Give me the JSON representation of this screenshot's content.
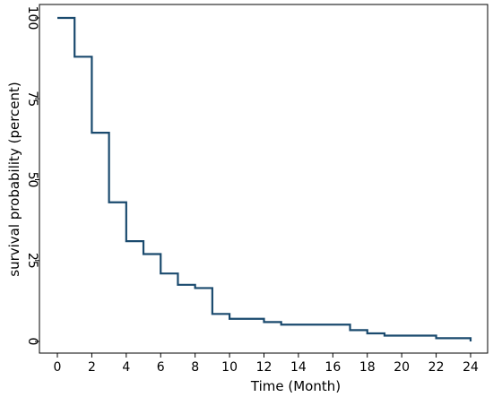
{
  "chart_data": {
    "type": "line",
    "line_style": "step",
    "title": "",
    "xlabel": "Time (Month)",
    "ylabel": "survival probability (percent)",
    "xlim": [
      0,
      24
    ],
    "ylim": [
      0,
      100
    ],
    "x_ticks": [
      0,
      2,
      4,
      6,
      8,
      10,
      12,
      14,
      16,
      18,
      20,
      22,
      24
    ],
    "y_ticks": [
      0,
      25,
      50,
      75,
      100
    ],
    "grid": false,
    "legend": "none",
    "series": [
      {
        "color": "#1a4a6e",
        "x": [
          0,
          1,
          2,
          3,
          4,
          5,
          6,
          7,
          8,
          9,
          10,
          12,
          13,
          17,
          18,
          19,
          22,
          24
        ],
        "y": [
          100,
          88,
          64.5,
          43,
          31,
          27,
          21,
          17.5,
          16.5,
          8.5,
          7,
          6,
          5.2,
          3.5,
          2.5,
          1.8,
          1,
          0
        ]
      }
    ]
  }
}
